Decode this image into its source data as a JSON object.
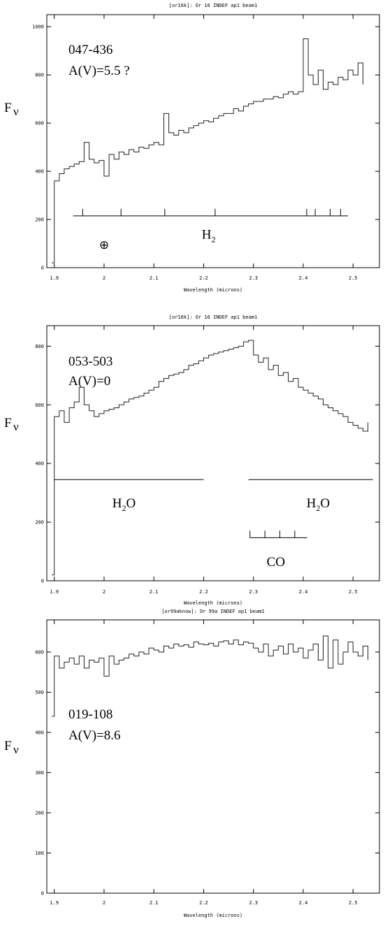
{
  "chart_data": [
    {
      "type": "line",
      "title": "[or16k]: Or 16 INDEF ap1 beam1",
      "xlabel": "Wavelength (microns)",
      "ylabel": "F",
      "ylabel_sub": "ν",
      "xlim": [
        1.885,
        2.553
      ],
      "ylim": [
        0,
        1050
      ],
      "xticks": [
        1.9,
        2.0,
        2.1,
        2.2,
        2.3,
        2.4,
        2.5
      ],
      "xtick_labels": [
        "1.9",
        "2",
        "2.1",
        "2.2",
        "2.3",
        "2.4",
        "2.5"
      ],
      "yticks": [
        0,
        200,
        400,
        600,
        800,
        1000
      ],
      "ytick_labels": [
        "0",
        "200",
        "400",
        "600",
        "800",
        "1000"
      ],
      "annotations": {
        "object": "047-436",
        "extinction": "A(V)=5.5 ?"
      },
      "features": [
        {
          "label": "H",
          "sub": "2",
          "x_start": 1.938,
          "x_end": 2.49,
          "y": 215,
          "ticks": [
            1.957,
            2.034,
            2.122,
            2.223,
            2.407,
            2.424,
            2.454,
            2.475
          ],
          "label_x": 2.21,
          "label_y": 120
        },
        {
          "symbol": "⊕",
          "x": 2.0,
          "y": 95
        }
      ],
      "x": [
        1.895,
        1.9,
        1.91,
        1.92,
        1.93,
        1.94,
        1.95,
        1.96,
        1.97,
        1.98,
        1.99,
        2.0,
        2.01,
        2.02,
        2.03,
        2.04,
        2.05,
        2.06,
        2.07,
        2.08,
        2.09,
        2.1,
        2.11,
        2.12,
        2.13,
        2.14,
        2.15,
        2.16,
        2.17,
        2.18,
        2.19,
        2.2,
        2.21,
        2.22,
        2.23,
        2.24,
        2.25,
        2.26,
        2.27,
        2.28,
        2.29,
        2.3,
        2.31,
        2.32,
        2.33,
        2.34,
        2.35,
        2.36,
        2.37,
        2.38,
        2.39,
        2.4,
        2.41,
        2.42,
        2.43,
        2.44,
        2.45,
        2.46,
        2.47,
        2.48,
        2.49,
        2.5,
        2.51,
        2.52
      ],
      "values": [
        20,
        360,
        390,
        410,
        420,
        430,
        440,
        520,
        450,
        435,
        445,
        380,
        470,
        450,
        480,
        470,
        490,
        480,
        500,
        495,
        510,
        520,
        510,
        640,
        560,
        550,
        570,
        560,
        580,
        590,
        600,
        610,
        605,
        620,
        630,
        640,
        640,
        660,
        650,
        670,
        680,
        690,
        690,
        700,
        700,
        710,
        705,
        720,
        730,
        720,
        730,
        950,
        800,
        760,
        820,
        740,
        770,
        760,
        790,
        780,
        820,
        800,
        850,
        760
      ]
    },
    {
      "type": "line",
      "title": "[or16k]: Or 16 INDEF ap1 beam1",
      "xlabel": "Wavelength (microns)",
      "ylabel": "F",
      "ylabel_sub": "ν",
      "xlim": [
        1.885,
        2.553
      ],
      "ylim": [
        0,
        870
      ],
      "xticks": [
        1.9,
        2.0,
        2.1,
        2.2,
        2.3,
        2.4,
        2.5
      ],
      "xtick_labels": [
        "1.9",
        "2",
        "2.1",
        "2.2",
        "2.3",
        "2.4",
        "2.5"
      ],
      "yticks": [
        0,
        200,
        400,
        600,
        800
      ],
      "ytick_labels": [
        "0",
        "200",
        "400",
        "600",
        "800"
      ],
      "annotations": {
        "object": "053-503",
        "extinction": "A(V)=0"
      },
      "features": [
        {
          "label": "H",
          "sub": "2",
          "tail": "O",
          "x_start": 1.9,
          "x_end": 2.2,
          "y": 345,
          "label_x": 2.04,
          "label_y": 250
        },
        {
          "label": "H",
          "sub": "2",
          "tail": "O",
          "x_start": 2.29,
          "x_end": 2.54,
          "y": 345,
          "label_x": 2.43,
          "label_y": 250
        },
        {
          "label": "CO",
          "x_start": 2.293,
          "x_end": 2.408,
          "y": 147,
          "ticks": [
            2.293,
            2.323,
            2.353,
            2.383
          ],
          "label_x": 2.345,
          "label_y": 50
        }
      ],
      "x": [
        1.895,
        1.9,
        1.91,
        1.92,
        1.93,
        1.94,
        1.95,
        1.96,
        1.97,
        1.98,
        1.99,
        2.0,
        2.01,
        2.02,
        2.03,
        2.04,
        2.05,
        2.06,
        2.07,
        2.08,
        2.09,
        2.1,
        2.11,
        2.12,
        2.13,
        2.14,
        2.15,
        2.16,
        2.17,
        2.18,
        2.19,
        2.2,
        2.21,
        2.22,
        2.23,
        2.24,
        2.25,
        2.26,
        2.27,
        2.28,
        2.29,
        2.3,
        2.31,
        2.32,
        2.33,
        2.34,
        2.35,
        2.36,
        2.37,
        2.38,
        2.39,
        2.4,
        2.41,
        2.42,
        2.43,
        2.44,
        2.45,
        2.46,
        2.47,
        2.48,
        2.49,
        2.5,
        2.51,
        2.52,
        2.53
      ],
      "values": [
        20,
        560,
        580,
        540,
        590,
        610,
        660,
        600,
        580,
        560,
        570,
        580,
        585,
        590,
        600,
        610,
        620,
        625,
        630,
        640,
        650,
        660,
        680,
        690,
        700,
        705,
        710,
        720,
        735,
        740,
        750,
        760,
        770,
        775,
        780,
        785,
        790,
        795,
        800,
        815,
        820,
        770,
        745,
        760,
        720,
        735,
        700,
        710,
        680,
        690,
        660,
        650,
        640,
        630,
        620,
        600,
        590,
        580,
        570,
        560,
        540,
        530,
        520,
        510,
        540
      ]
    },
    {
      "type": "line",
      "title": "[or99aknow]: Or 99a INDEF ap1 beam1",
      "xlabel": "Wavelength (microns)",
      "ylabel": "F",
      "ylabel_sub": "ν",
      "xlim": [
        1.885,
        2.553
      ],
      "ylim": [
        0,
        680
      ],
      "xticks": [
        1.9,
        2.0,
        2.1,
        2.2,
        2.3,
        2.4,
        2.5
      ],
      "xtick_labels": [
        "1.9",
        "2",
        "2.1",
        "2.2",
        "2.3",
        "2.4",
        "2.5"
      ],
      "yticks": [
        0,
        100,
        200,
        300,
        400,
        500,
        600
      ],
      "ytick_labels": [
        "0",
        "100",
        "200",
        "300",
        "400",
        "500",
        "600"
      ],
      "annotations": {
        "object": "019-108",
        "extinction": "A(V)=8.6"
      },
      "features": [],
      "x": [
        1.895,
        1.9,
        1.91,
        1.92,
        1.93,
        1.94,
        1.95,
        1.96,
        1.97,
        1.98,
        1.99,
        2.0,
        2.01,
        2.02,
        2.03,
        2.04,
        2.05,
        2.06,
        2.07,
        2.08,
        2.09,
        2.1,
        2.11,
        2.12,
        2.13,
        2.14,
        2.15,
        2.16,
        2.17,
        2.18,
        2.19,
        2.2,
        2.21,
        2.22,
        2.23,
        2.24,
        2.25,
        2.26,
        2.27,
        2.28,
        2.29,
        2.3,
        2.31,
        2.32,
        2.33,
        2.34,
        2.35,
        2.36,
        2.37,
        2.38,
        2.39,
        2.4,
        2.41,
        2.42,
        2.43,
        2.44,
        2.45,
        2.46,
        2.47,
        2.48,
        2.49,
        2.5,
        2.51,
        2.52,
        2.53
      ],
      "values": [
        440,
        590,
        560,
        575,
        585,
        570,
        590,
        560,
        580,
        575,
        585,
        540,
        590,
        570,
        580,
        585,
        595,
        590,
        600,
        595,
        610,
        605,
        600,
        615,
        610,
        620,
        615,
        618,
        612,
        625,
        620,
        618,
        622,
        615,
        625,
        628,
        620,
        630,
        618,
        625,
        622,
        610,
        600,
        620,
        590,
        605,
        615,
        595,
        620,
        600,
        610,
        585,
        605,
        620,
        580,
        640,
        560,
        630,
        570,
        600,
        625,
        600,
        590,
        615,
        580
      ]
    }
  ]
}
